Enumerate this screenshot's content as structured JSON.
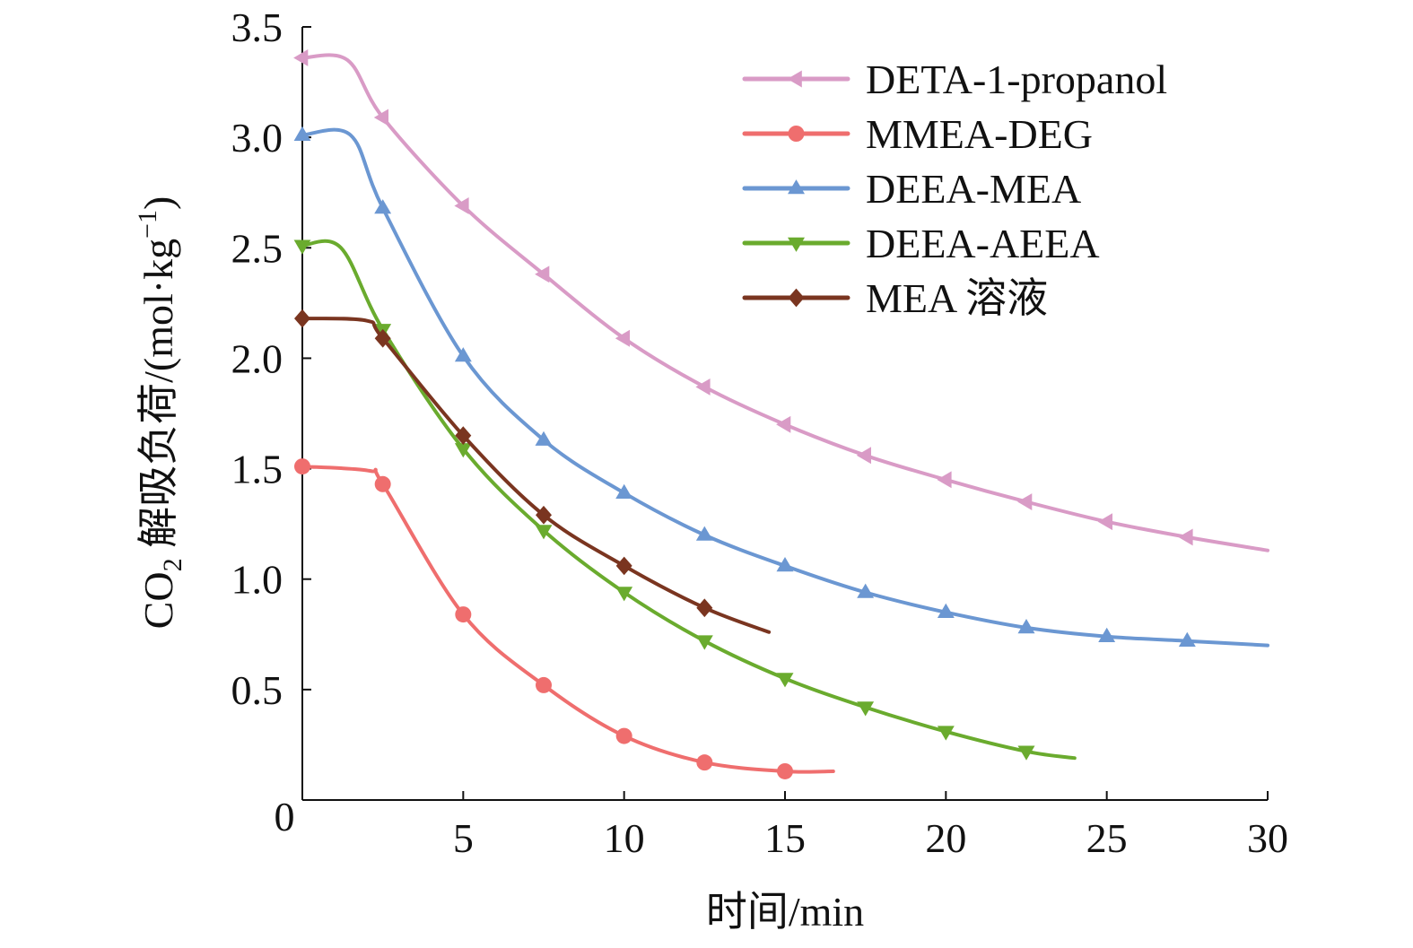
{
  "chart_data": {
    "type": "line",
    "xlabel": "时间/min",
    "ylabel_prefix": "CO",
    "ylabel_sub": "2",
    "ylabel_main": " 解吸负荷/(mol·kg",
    "ylabel_sup": "−1",
    "ylabel_end": ")",
    "xlim": [
      0,
      30
    ],
    "ylim": [
      0,
      3.5
    ],
    "x_ticks": [
      0,
      5,
      10,
      15,
      20,
      25,
      30
    ],
    "x_tick_labels": [
      "0",
      "5",
      "10",
      "15",
      "20",
      "25",
      "30"
    ],
    "y_ticks": [
      0.5,
      1.0,
      1.5,
      2.0,
      2.5,
      3.0,
      3.5
    ],
    "y_tick_labels": [
      "0.5",
      "1.0",
      "1.5",
      "2.0",
      "2.5",
      "3.0",
      "3.5"
    ],
    "grid": false,
    "legend_position": "top-right",
    "series": [
      {
        "name": "DETA-1-propanol",
        "color": "#d99bc6",
        "marker": "triangle-left",
        "line": [
          [
            0,
            3.36
          ],
          [
            1.4,
            3.35
          ],
          [
            2.5,
            3.09
          ],
          [
            5,
            2.69
          ],
          [
            7.5,
            2.38
          ],
          [
            10,
            2.09
          ],
          [
            12.5,
            1.87
          ],
          [
            15,
            1.7
          ],
          [
            17.5,
            1.56
          ],
          [
            20,
            1.45
          ],
          [
            22.5,
            1.35
          ],
          [
            25,
            1.26
          ],
          [
            27.5,
            1.19
          ],
          [
            30,
            1.13
          ]
        ],
        "markers": [
          [
            0,
            3.36
          ],
          [
            2.5,
            3.09
          ],
          [
            5,
            2.69
          ],
          [
            7.5,
            2.38
          ],
          [
            10,
            2.09
          ],
          [
            12.5,
            1.87
          ],
          [
            15,
            1.7
          ],
          [
            17.5,
            1.56
          ],
          [
            20,
            1.45
          ],
          [
            22.5,
            1.35
          ],
          [
            25,
            1.26
          ],
          [
            27.5,
            1.19
          ]
        ]
      },
      {
        "name": "MMEA-DEG",
        "color": "#ef6e6e",
        "marker": "circle",
        "line": [
          [
            0,
            1.51
          ],
          [
            2.1,
            1.49
          ],
          [
            2.5,
            1.43
          ],
          [
            5,
            0.84
          ],
          [
            7.5,
            0.52
          ],
          [
            10,
            0.29
          ],
          [
            12.5,
            0.17
          ],
          [
            15,
            0.13
          ],
          [
            16.5,
            0.13
          ]
        ],
        "markers": [
          [
            0,
            1.51
          ],
          [
            2.5,
            1.43
          ],
          [
            5,
            0.84
          ],
          [
            7.5,
            0.52
          ],
          [
            10,
            0.29
          ],
          [
            12.5,
            0.17
          ],
          [
            15,
            0.13
          ]
        ]
      },
      {
        "name": "DEEA-MEA",
        "color": "#6b97d2",
        "marker": "triangle-up",
        "line": [
          [
            0,
            3.01
          ],
          [
            1.5,
            3.01
          ],
          [
            2.5,
            2.68
          ],
          [
            5,
            2.01
          ],
          [
            7.5,
            1.63
          ],
          [
            10,
            1.39
          ],
          [
            12.5,
            1.2
          ],
          [
            15,
            1.06
          ],
          [
            17.5,
            0.94
          ],
          [
            20,
            0.85
          ],
          [
            22.5,
            0.78
          ],
          [
            25,
            0.74
          ],
          [
            27.5,
            0.72
          ],
          [
            30,
            0.7
          ]
        ],
        "markers": [
          [
            0,
            3.01
          ],
          [
            2.5,
            2.68
          ],
          [
            5,
            2.01
          ],
          [
            7.5,
            1.63
          ],
          [
            10,
            1.39
          ],
          [
            12.5,
            1.2
          ],
          [
            15,
            1.06
          ],
          [
            17.5,
            0.94
          ],
          [
            20,
            0.85
          ],
          [
            22.5,
            0.78
          ],
          [
            25,
            0.74
          ],
          [
            27.5,
            0.72
          ]
        ]
      },
      {
        "name": "DEEA-AEEA",
        "color": "#6aab2e",
        "marker": "triangle-down",
        "line": [
          [
            0,
            2.51
          ],
          [
            1.2,
            2.5
          ],
          [
            2.5,
            2.13
          ],
          [
            5,
            1.59
          ],
          [
            7.5,
            1.22
          ],
          [
            10,
            0.94
          ],
          [
            12.5,
            0.72
          ],
          [
            15,
            0.55
          ],
          [
            17.5,
            0.42
          ],
          [
            20,
            0.31
          ],
          [
            22.5,
            0.22
          ],
          [
            24,
            0.19
          ]
        ],
        "markers": [
          [
            0,
            2.51
          ],
          [
            2.5,
            2.13
          ],
          [
            5,
            1.59
          ],
          [
            7.5,
            1.22
          ],
          [
            10,
            0.94
          ],
          [
            12.5,
            0.72
          ],
          [
            15,
            0.55
          ],
          [
            17.5,
            0.42
          ],
          [
            20,
            0.31
          ],
          [
            22.5,
            0.22
          ]
        ]
      },
      {
        "name": "MEA 溶液",
        "color": "#7a3520",
        "marker": "diamond",
        "line": [
          [
            0,
            2.18
          ],
          [
            2,
            2.17
          ],
          [
            2.5,
            2.09
          ],
          [
            5,
            1.65
          ],
          [
            7.5,
            1.29
          ],
          [
            10,
            1.06
          ],
          [
            12.5,
            0.87
          ],
          [
            14.5,
            0.76
          ]
        ],
        "markers": [
          [
            0,
            2.18
          ],
          [
            2.5,
            2.09
          ],
          [
            5,
            1.65
          ],
          [
            7.5,
            1.29
          ],
          [
            10,
            1.06
          ],
          [
            12.5,
            0.87
          ]
        ]
      }
    ]
  }
}
